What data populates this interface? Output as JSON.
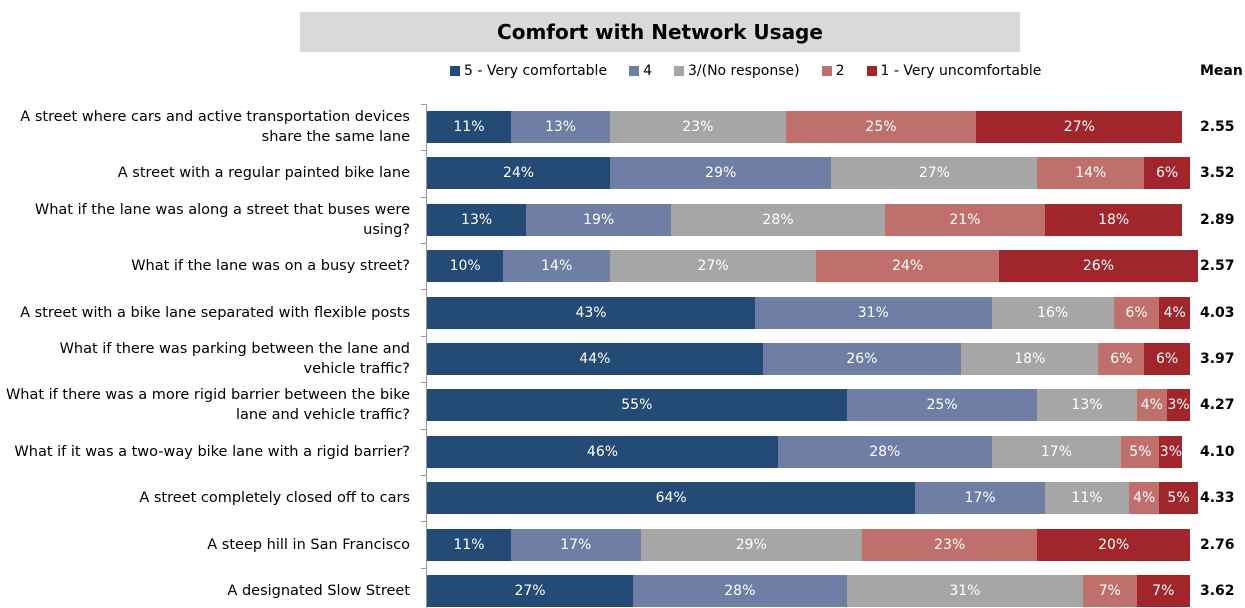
{
  "chart_data": {
    "type": "stacked-bar-horizontal",
    "title": "Comfort with Network Usage",
    "categories": [
      "A street where cars and active transportation devices share the same lane",
      "A street with a regular painted bike lane",
      "What if the lane was along a street that buses were using?",
      "What if the lane was on a busy street?",
      "A street with a bike lane separated with flexible posts",
      "What if there was parking between the lane and vehicle traffic?",
      "What if there was a more rigid barrier between the bike lane and vehicle traffic?",
      "What if it was a two-way bike lane with a rigid barrier?",
      "A street completely closed off to cars",
      "A steep hill in San Francisco",
      "A designated Slow Street"
    ],
    "xlim": [
      0,
      100
    ],
    "series": [
      {
        "name": "5 - Very comfortable",
        "color": "#244a76",
        "values": [
          11,
          24,
          13,
          10,
          43,
          44,
          55,
          46,
          64,
          11,
          27
        ],
        "value_labels": [
          "11%",
          "24%",
          "13%",
          "10%",
          "43%",
          "44%",
          "55%",
          "46%",
          "64%",
          "11%",
          "27%"
        ]
      },
      {
        "name": "4",
        "color": "#6e7ea5",
        "values": [
          13,
          29,
          19,
          14,
          31,
          26,
          25,
          28,
          17,
          17,
          28
        ],
        "value_labels": [
          "13%",
          "29%",
          "19%",
          "14%",
          "31%",
          "26%",
          "25%",
          "28%",
          "17%",
          "17%",
          "28%"
        ]
      },
      {
        "name": "3/(No response)",
        "color": "#a6a6a6",
        "values": [
          23,
          27,
          28,
          27,
          16,
          18,
          13,
          17,
          11,
          29,
          31
        ],
        "value_labels": [
          "23%",
          "27%",
          "28%",
          "27%",
          "16%",
          "18%",
          "13%",
          "17%",
          "11%",
          "29%",
          "31%"
        ]
      },
      {
        "name": "2",
        "color": "#c0706c",
        "values": [
          25,
          14,
          21,
          24,
          6,
          6,
          4,
          5,
          4,
          23,
          7
        ],
        "value_labels": [
          "25%",
          "14%",
          "21%",
          "24%",
          "6%",
          "6%",
          "4%",
          "5%",
          "4%",
          "23%",
          "7%"
        ]
      },
      {
        "name": "1 - Very uncomfortable",
        "color": "#a0262c",
        "values": [
          27,
          6,
          18,
          26,
          4,
          6,
          3,
          3,
          5,
          20,
          7
        ],
        "value_labels": [
          "27%",
          "6%",
          "18%",
          "26%",
          "4%",
          "6%",
          "3%",
          "3%",
          "5%",
          "20%",
          "7%"
        ]
      }
    ],
    "mean": {
      "name": "Mean",
      "values": [
        2.55,
        3.52,
        2.89,
        2.57,
        4.03,
        3.97,
        4.27,
        4.1,
        4.33,
        2.76,
        3.62
      ],
      "value_labels": [
        "2.55",
        "3.52",
        "2.89",
        "2.57",
        "4.03",
        "3.97",
        "4.27",
        "4.10",
        "4.33",
        "2.76",
        "3.62"
      ]
    }
  }
}
